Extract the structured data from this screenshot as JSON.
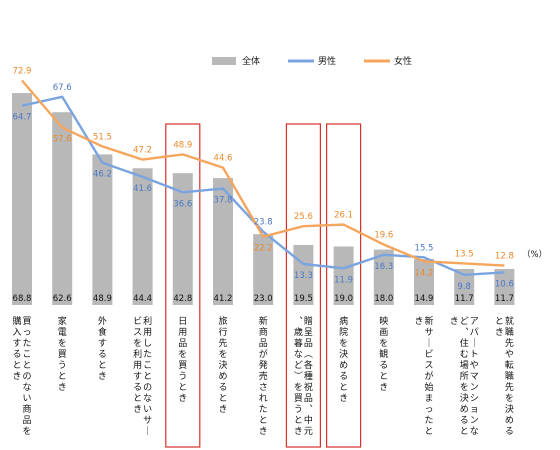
{
  "chart_data": {
    "type": "bar",
    "unit_label": "（%）",
    "legend": [
      "全体",
      "男性",
      "女性"
    ],
    "categories": [
      "買ったことのない商品を購入するとき",
      "家電を買うとき",
      "外食するとき",
      "利用したことのないサービスを利用するとき",
      "日用品を買うとき",
      "旅行先を決めるとき",
      "新商品が発売されたとき",
      "贈呈品（各種祝品、中元、歳暮など）を買うとき",
      "病院を決めるとき",
      "映画を観るとき",
      "新サービスが始まったとき",
      "アパートやマンションなど、住む場所を決めるとき",
      "就職先や転職先を決めるとき"
    ],
    "series": [
      {
        "name": "全体",
        "kind": "bar",
        "color": "#b8b8b8",
        "values": [
          68.8,
          62.6,
          48.9,
          44.4,
          42.8,
          41.2,
          23.0,
          19.5,
          19.0,
          18.0,
          14.9,
          11.7,
          11.7
        ],
        "labels": [
          "68.8",
          "62.6",
          "48.9",
          "44.4",
          "42.8",
          "41.2",
          "23.0",
          "19.5",
          "19.0",
          "18.0",
          "14.9",
          "11.7",
          "11.7"
        ]
      },
      {
        "name": "男性",
        "kind": "line",
        "color": "#7aa4e0",
        "values": [
          64.7,
          67.6,
          46.2,
          41.6,
          36.6,
          37.8,
          23.8,
          13.3,
          11.9,
          16.3,
          15.5,
          9.8,
          10.6
        ],
        "labels": [
          "64.7",
          "67.6",
          "46.2",
          "41.6",
          "36.6",
          "37.8",
          "23.8",
          "13.3",
          "11.9",
          "16.3",
          "15.5",
          "9.8",
          "10.6"
        ]
      },
      {
        "name": "女性",
        "kind": "line",
        "color": "#f5a55c",
        "values": [
          72.9,
          57.6,
          51.5,
          47.2,
          48.9,
          44.6,
          22.2,
          25.6,
          26.1,
          19.6,
          14.2,
          13.5,
          12.8
        ],
        "labels": [
          "72.9",
          "57.6",
          "51.5",
          "47.2",
          "48.9",
          "44.6",
          "22.2",
          "25.6",
          "26.1",
          "19.6",
          "14.2",
          "13.5",
          "12.8"
        ]
      }
    ],
    "highlighted_categories": [
      4,
      7,
      8
    ],
    "highlight_color": "#d9302b",
    "ylim": [
      0,
      80
    ]
  }
}
